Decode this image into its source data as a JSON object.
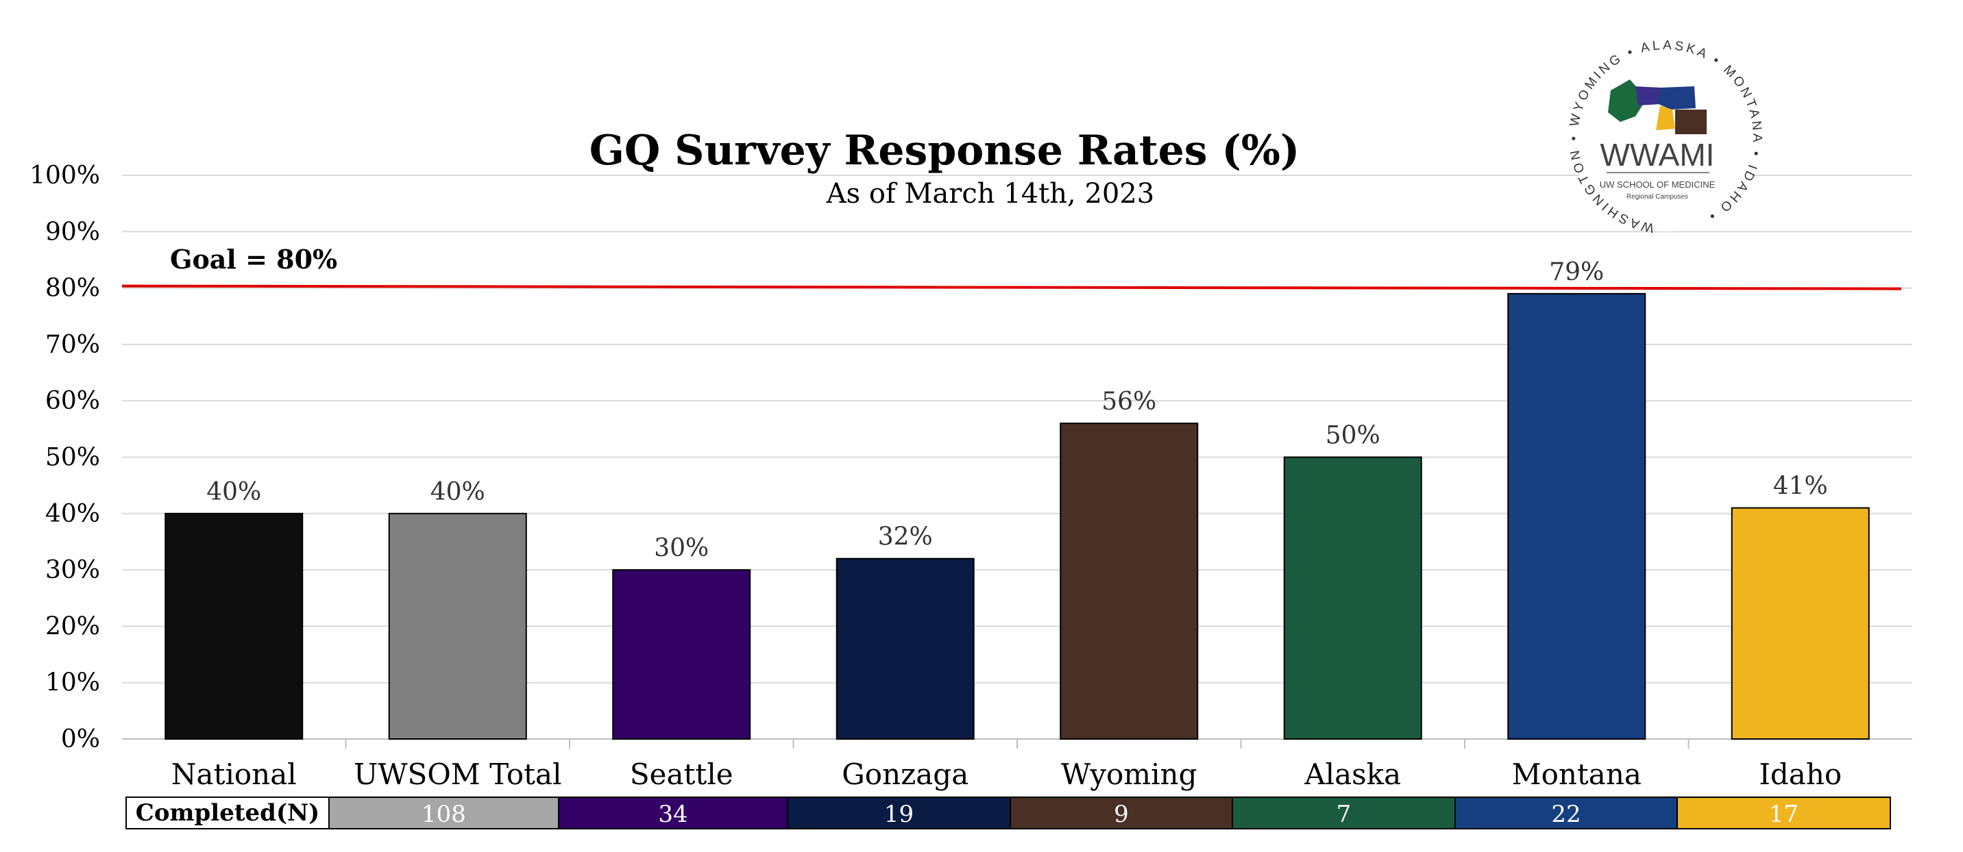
{
  "chart_data": {
    "type": "bar",
    "title": "GQ Survey Response Rates (%)",
    "subtitle": "As of March 14th, 2023",
    "categories": [
      "National",
      "UWSOM Total",
      "Seattle",
      "Gonzaga",
      "Wyoming",
      "Alaska",
      "Montana",
      "Idaho"
    ],
    "values": [
      40,
      40,
      30,
      32,
      56,
      50,
      79,
      41
    ],
    "value_labels": [
      "40%",
      "40%",
      "30%",
      "32%",
      "56%",
      "50%",
      "79%",
      "41%"
    ],
    "colors": [
      "#0e0e0e",
      "#808080",
      "#330066",
      "#0b1c44",
      "#4a3024",
      "#1a5a3e",
      "#153f80",
      "#f0b41e"
    ],
    "ylim": [
      0,
      100
    ],
    "yticks": [
      "0%",
      "10%",
      "20%",
      "30%",
      "40%",
      "50%",
      "60%",
      "70%",
      "80%",
      "90%",
      "100%"
    ],
    "grid": true,
    "goal": {
      "label": "Goal = 80%",
      "value": 80,
      "color": "#e00000"
    },
    "completed_table": {
      "label": "Completed(N)",
      "values": [
        "108",
        "34",
        "19",
        "9",
        "7",
        "22",
        "17"
      ],
      "colors": [
        "#a6a6a6",
        "#330066",
        "#0b1c44",
        "#4a3024",
        "#1a5a3e",
        "#153f80",
        "#f0b41e"
      ]
    }
  },
  "logo": {
    "name": "WWAMI",
    "line1": "UW SCHOOL OF MEDICINE",
    "line2": "Regional Campuses",
    "ring": "WASHINGTON • WYOMING • ALASKA • MONTANA • IDAHO •"
  }
}
